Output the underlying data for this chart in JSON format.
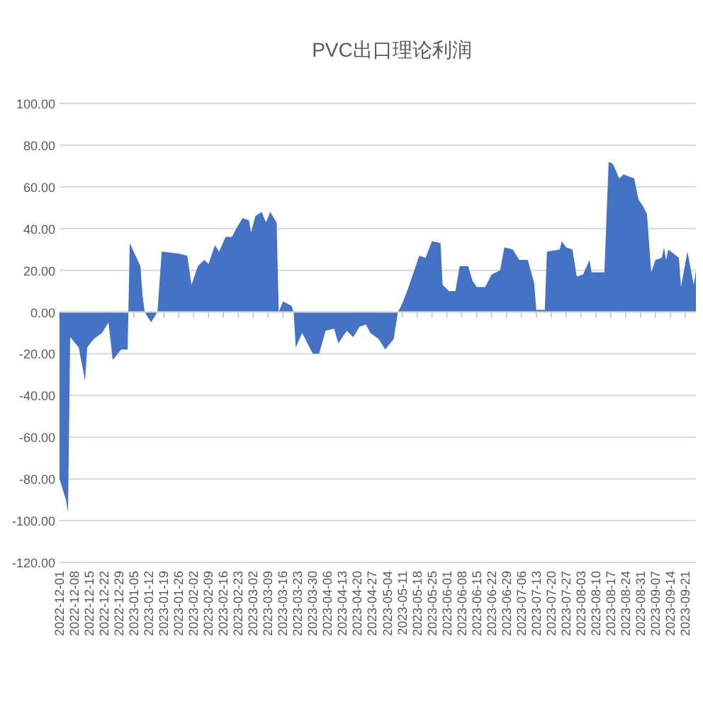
{
  "chart_data": {
    "type": "area",
    "title": "PVC出口理论利润",
    "color": "#4472c4",
    "grid": "y",
    "x": [
      "2022-12-01",
      "2022-12-04",
      "2022-12-05",
      "2022-12-06",
      "2022-12-10",
      "2022-12-13",
      "2022-12-14",
      "2022-12-17",
      "2022-12-21",
      "2022-12-24",
      "2022-12-26",
      "2022-12-30",
      "2023-01-02",
      "2023-01-03",
      "2023-01-08",
      "2023-01-09",
      "2023-01-10",
      "2023-01-13",
      "2023-01-16",
      "2023-01-18",
      "2023-01-26",
      "2023-01-30",
      "2023-02-01",
      "2023-02-04",
      "2023-02-07",
      "2023-02-09",
      "2023-02-12",
      "2023-02-14",
      "2023-02-17",
      "2023-02-20",
      "2023-02-22",
      "2023-02-25",
      "2023-02-28",
      "2023-03-01",
      "2023-03-03",
      "2023-03-06",
      "2023-03-08",
      "2023-03-10",
      "2023-03-13",
      "2023-03-14",
      "2023-03-16",
      "2023-03-20",
      "2023-03-21",
      "2023-03-22",
      "2023-03-25",
      "2023-03-30",
      "2023-04-02",
      "2023-04-05",
      "2023-04-09",
      "2023-04-11",
      "2023-04-15",
      "2023-04-18",
      "2023-04-21",
      "2023-04-24",
      "2023-04-26",
      "2023-04-30",
      "2023-05-03",
      "2023-05-07",
      "2023-05-09",
      "2023-05-11",
      "2023-05-14",
      "2023-05-19",
      "2023-05-22",
      "2023-05-25",
      "2023-05-29",
      "2023-05-30",
      "2023-06-02",
      "2023-06-05",
      "2023-06-07",
      "2023-06-11",
      "2023-06-13",
      "2023-06-15",
      "2023-06-19",
      "2023-06-22",
      "2023-06-26",
      "2023-06-28",
      "2023-07-02",
      "2023-07-05",
      "2023-07-09",
      "2023-07-12",
      "2023-07-13",
      "2023-07-17",
      "2023-07-18",
      "2023-07-24",
      "2023-07-25",
      "2023-07-27",
      "2023-07-30",
      "2023-08-01",
      "2023-08-04",
      "2023-08-07",
      "2023-08-08",
      "2023-08-14",
      "2023-08-16",
      "2023-08-18",
      "2023-08-21",
      "2023-08-23",
      "2023-08-28",
      "2023-08-30",
      "2023-09-01",
      "2023-09-03",
      "2023-09-05",
      "2023-09-07",
      "2023-09-10",
      "2023-09-11",
      "2023-09-12",
      "2023-09-13",
      "2023-09-18",
      "2023-09-19",
      "2023-09-22",
      "2023-09-25",
      "2023-09-26"
    ],
    "values": [
      -80,
      -90,
      -96,
      -12,
      -17,
      -33,
      -17,
      -13,
      -10,
      -5,
      -23,
      -18,
      -18,
      33,
      22,
      8,
      0,
      -5,
      0,
      29,
      28,
      27,
      13,
      22,
      25,
      23,
      32,
      29,
      36,
      36,
      40,
      45,
      44,
      38,
      46,
      48,
      43,
      48,
      43,
      0,
      5,
      3,
      0,
      -17,
      -10,
      -20,
      -20,
      -9,
      -8,
      -15,
      -9,
      -12,
      -7,
      -6,
      -10,
      -13,
      -18,
      -13,
      0,
      4,
      12,
      27,
      26,
      34,
      33,
      13,
      10,
      10,
      22,
      22,
      15,
      12,
      12,
      18,
      20,
      31,
      30,
      25,
      25,
      14,
      1,
      1,
      29,
      30,
      34,
      31,
      30,
      17,
      18,
      25,
      19,
      19,
      72,
      71,
      64,
      66,
      64,
      54,
      51,
      47,
      19,
      25,
      26,
      31,
      25,
      30,
      26,
      12,
      29,
      13,
      20
    ],
    "xlim": [
      "2022-12-01",
      "2023-09-26"
    ],
    "xticks": [
      "2022-12-01",
      "2022-12-08",
      "2022-12-15",
      "2022-12-22",
      "2022-12-29",
      "2023-01-05",
      "2023-01-12",
      "2023-01-19",
      "2023-01-26",
      "2023-02-02",
      "2023-02-09",
      "2023-02-16",
      "2023-02-23",
      "2023-03-02",
      "2023-03-09",
      "2023-03-16",
      "2023-03-23",
      "2023-03-30",
      "2023-04-06",
      "2023-04-13",
      "2023-04-20",
      "2023-04-27",
      "2023-05-04",
      "2023-05-11",
      "2023-05-18",
      "2023-05-25",
      "2023-06-01",
      "2023-06-08",
      "2023-06-15",
      "2023-06-22",
      "2023-06-29",
      "2023-07-06",
      "2023-07-13",
      "2023-07-20",
      "2023-07-27",
      "2023-08-03",
      "2023-08-10",
      "2023-08-17",
      "2023-08-24",
      "2023-08-31",
      "2023-09-07",
      "2023-09-14",
      "2023-09-21"
    ],
    "ylim": [
      -120,
      100
    ],
    "yticks": [
      {
        "value": -120,
        "label": "-120.00"
      },
      {
        "value": -100,
        "label": "-100.00"
      },
      {
        "value": -80,
        "label": "-80.00"
      },
      {
        "value": -60,
        "label": "-60.00"
      },
      {
        "value": -40,
        "label": "-40.00"
      },
      {
        "value": -20,
        "label": "-20.00"
      },
      {
        "value": 0,
        "label": "0.00"
      },
      {
        "value": 20,
        "label": "20.00"
      },
      {
        "value": 40,
        "label": "40.00"
      },
      {
        "value": 60,
        "label": "60.00"
      },
      {
        "value": 80,
        "label": "80.00"
      },
      {
        "value": 100,
        "label": "100.00"
      }
    ]
  }
}
